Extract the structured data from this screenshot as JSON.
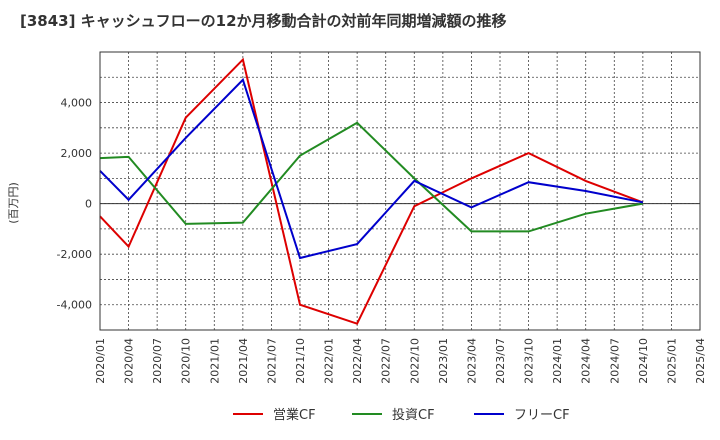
{
  "chart_data": {
    "type": "line",
    "title": "[3843]  キャッシュフローの12か月移動合計の対前年同期増減額の推移",
    "xlabel": "",
    "ylabel": "(百万円)",
    "categories": [
      "2020/01",
      "2020/04",
      "2020/07",
      "2020/10",
      "2021/01",
      "2021/04",
      "2021/07",
      "2021/10",
      "2022/01",
      "2022/04",
      "2022/07",
      "2022/10",
      "2023/01",
      "2023/04",
      "2023/07",
      "2023/10",
      "2024/01",
      "2024/04",
      "2024/07",
      "2024/10",
      "2025/01",
      "2025/04"
    ],
    "ylim": [
      -5000,
      6000
    ],
    "yticks": [
      -4000,
      -2000,
      0,
      2000,
      4000
    ],
    "ytick_labels": [
      "-4,000",
      "-2,000",
      "0",
      "2,000",
      "4,000"
    ],
    "grid": true,
    "legend_position": "bottom",
    "series": [
      {
        "name": "営業CF",
        "color": "#dd0000",
        "values": [
          -500,
          -1700,
          null,
          3400,
          null,
          5700,
          null,
          -4000,
          null,
          -4750,
          null,
          -100,
          null,
          1000,
          null,
          2000,
          null,
          900,
          null,
          50,
          null,
          null
        ]
      },
      {
        "name": "投資CF",
        "color": "#228b22",
        "values": [
          1800,
          1850,
          null,
          -800,
          null,
          -750,
          null,
          1900,
          null,
          3200,
          null,
          1000,
          null,
          -1100,
          null,
          -1100,
          null,
          -400,
          null,
          0,
          null,
          null
        ]
      },
      {
        "name": "フリーCF",
        "color": "#0000cc",
        "values": [
          1300,
          150,
          null,
          2600,
          null,
          4900,
          null,
          -2150,
          null,
          -1600,
          null,
          900,
          null,
          -150,
          null,
          850,
          null,
          500,
          null,
          50,
          null,
          null
        ]
      }
    ]
  }
}
